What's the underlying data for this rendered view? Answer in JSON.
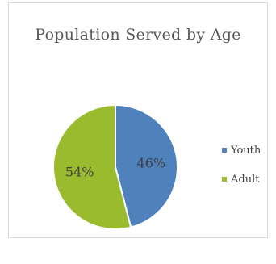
{
  "chart_data": {
    "type": "pie",
    "title": "Population Served by Age",
    "categories": [
      "Youth",
      "Adult"
    ],
    "values": [
      46,
      54
    ],
    "labels": [
      "46%",
      "54%"
    ],
    "colors": [
      "#4f81bd",
      "#9bbb2f"
    ],
    "legend_position": "right"
  }
}
